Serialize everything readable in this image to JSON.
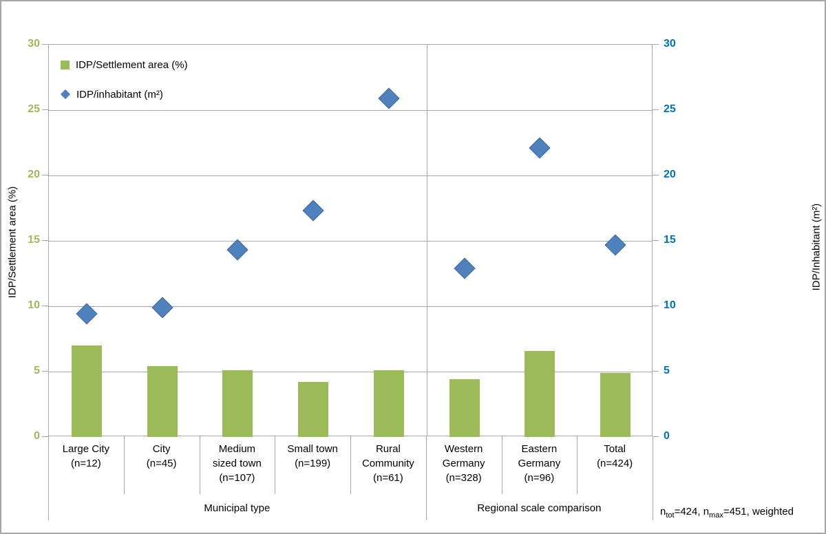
{
  "figure": {
    "footnote_parts": {
      "p1": "n",
      "sub1": "tot",
      "p2": "=424, n",
      "sub2": "max",
      "p3": "=451, weighted"
    }
  },
  "chart_data": {
    "type": "bar+scatter-dual-axis",
    "title": "",
    "sections": [
      {
        "label": "Municipal type",
        "categories": [
          {
            "label": "Large City\n(n=12)",
            "settlement_area_pct": 7.0,
            "inhabitant_m2": 9.4
          },
          {
            "label": "City\n(n=45)",
            "settlement_area_pct": 5.4,
            "inhabitant_m2": 9.9
          },
          {
            "label": "Medium\nsized town\n(n=107)",
            "settlement_area_pct": 5.1,
            "inhabitant_m2": 14.3
          },
          {
            "label": "Small town\n(n=199)",
            "settlement_area_pct": 4.2,
            "inhabitant_m2": 17.3
          },
          {
            "label": "Rural\nCommunity\n(n=61)",
            "settlement_area_pct": 5.1,
            "inhabitant_m2": 25.9
          }
        ]
      },
      {
        "label": "Regional scale comparison",
        "categories": [
          {
            "label": "Western\nGermany\n(n=328)",
            "settlement_area_pct": 4.4,
            "inhabitant_m2": 12.9
          },
          {
            "label": "Eastern\nGermany\n(n=96)",
            "settlement_area_pct": 6.6,
            "inhabitant_m2": 22.1
          },
          {
            "label": "Total\n(n=424)",
            "settlement_area_pct": 4.9,
            "inhabitant_m2": 14.7
          }
        ]
      }
    ],
    "series": [
      {
        "name": "IDP/Settlement area (%)",
        "type": "bar",
        "axis": "left",
        "color": "#9BBB59",
        "value_key": "settlement_area_pct"
      },
      {
        "name": "IDP/inhabitant (m²)",
        "type": "scatter-diamond",
        "axis": "right",
        "color": "#4F81BD",
        "value_key": "inhabitant_m2"
      }
    ],
    "left_axis": {
      "title": "IDP/Settlement area (%)",
      "min": 0,
      "max": 30,
      "step": 5,
      "ticks": [
        0,
        5,
        10,
        15,
        20,
        25,
        30
      ],
      "tick_color": "#9BBB59"
    },
    "right_axis": {
      "title": "IDP/Inhabitant (m²)",
      "min": 0,
      "max": 30,
      "step": 5,
      "ticks": [
        0,
        5,
        10,
        15,
        20,
        25,
        30
      ],
      "tick_color": "#0070C0"
    },
    "gridlines": true,
    "legend_position": "top-left-inside",
    "footnote": "n_tot=424, n_max=451, weighted"
  }
}
